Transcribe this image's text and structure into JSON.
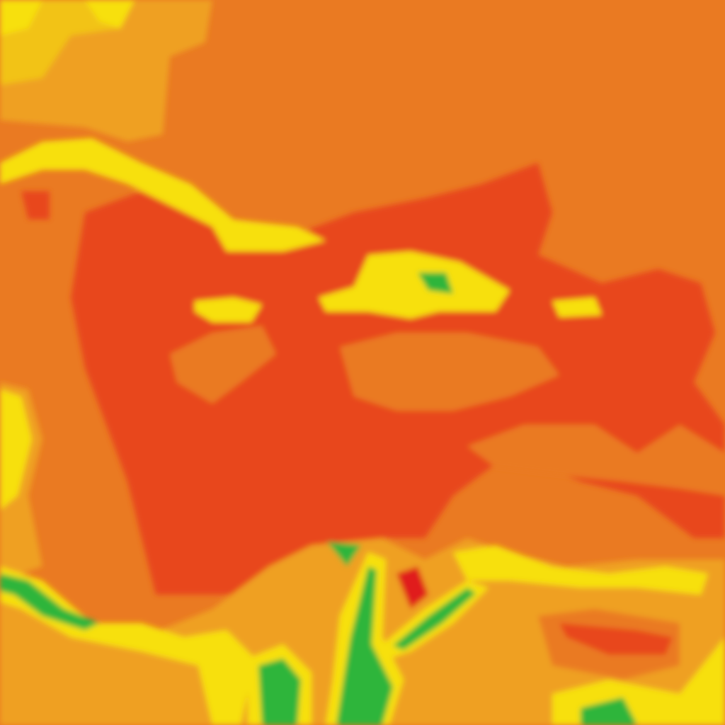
{
  "map": {
    "type": "heatmap-tile",
    "colors": {
      "background": "#EA7A22",
      "light_orange": "#EFA020",
      "hot": "#E8461E",
      "hottest": "#E01E1E",
      "warm_yellow": "#F2C318",
      "yellow": "#F7E00C",
      "light_green": "#A8D82A",
      "green": "#2DB53A",
      "dark_green": "#1A9A48"
    }
  }
}
